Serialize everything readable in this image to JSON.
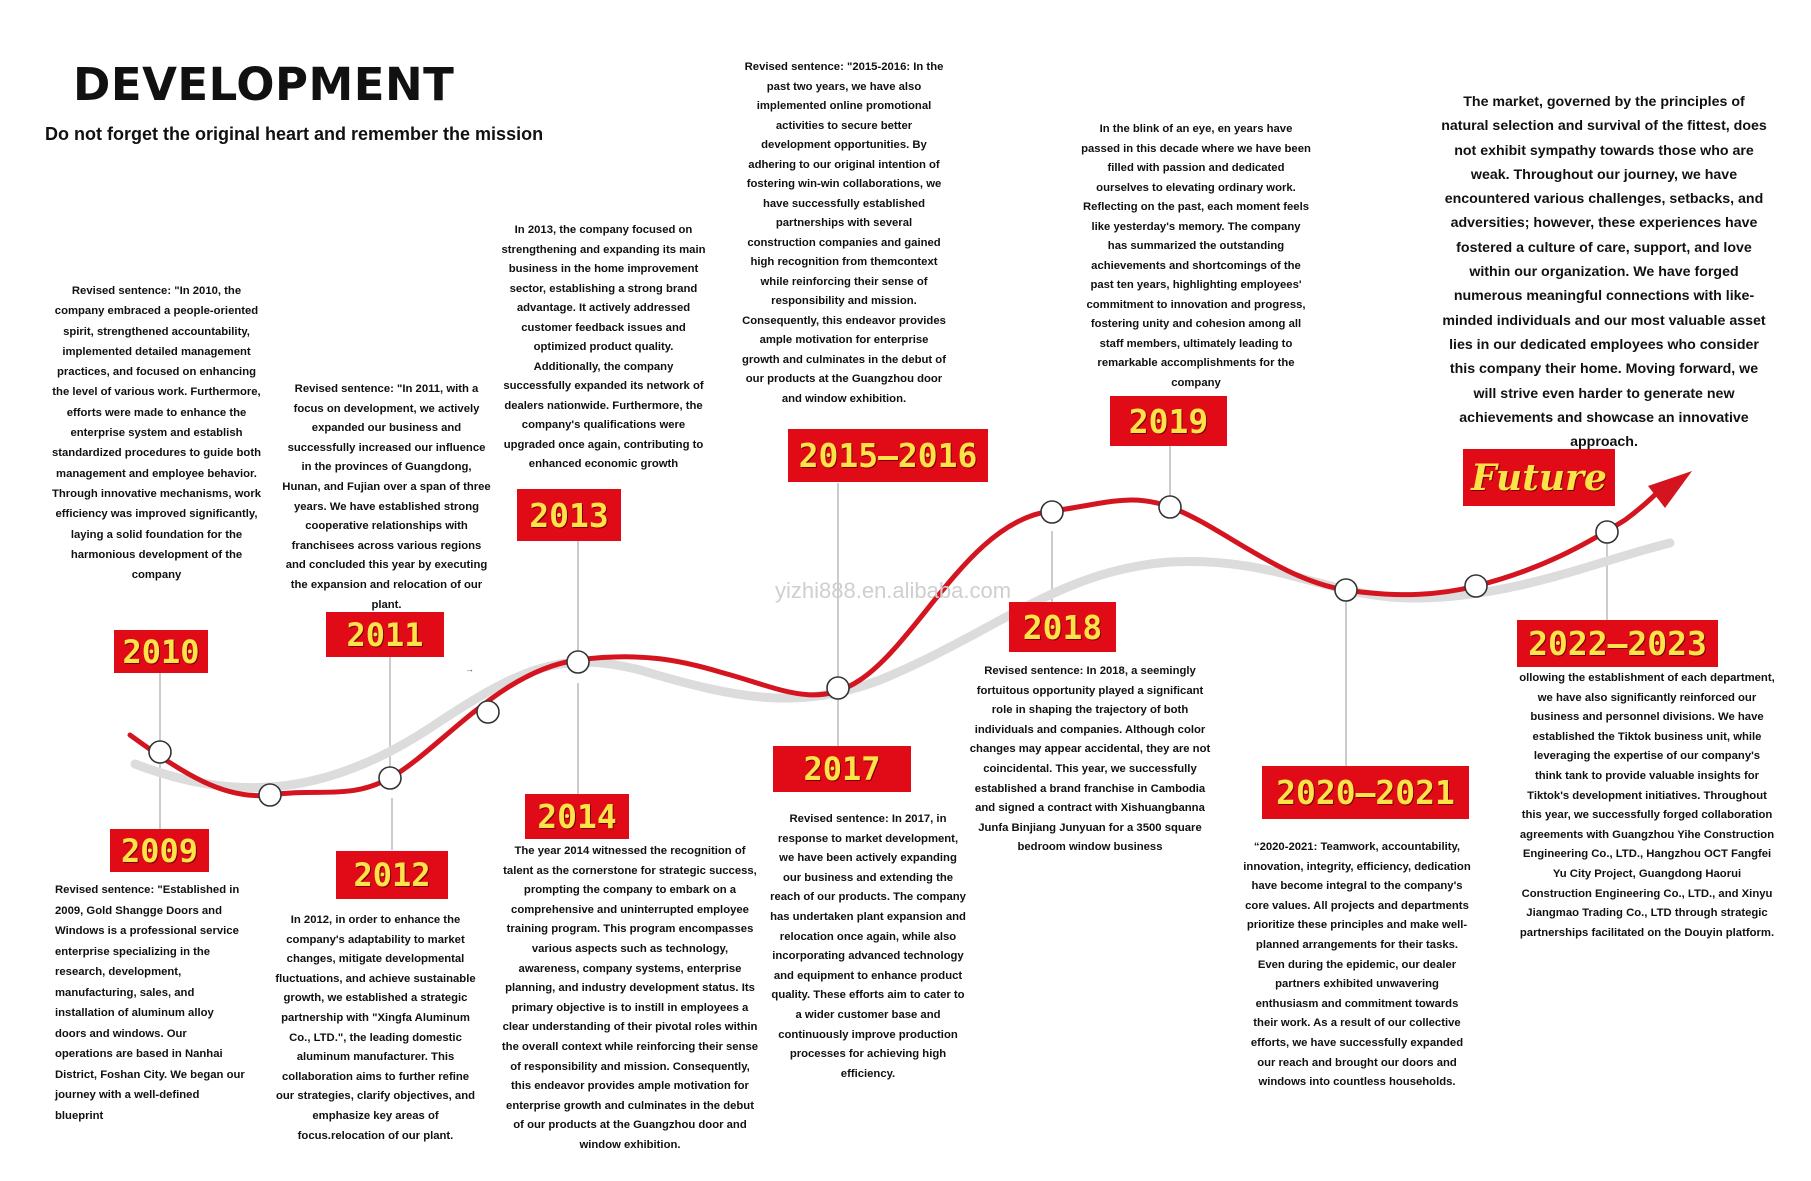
{
  "header": {
    "title": "DEVELOPMENT",
    "subtitle": "Do not forget the original heart and remember the mission"
  },
  "watermark": "yizhi888.en.alibaba.com",
  "market_text": "The market, governed by the principles of natural selection and survival of the fittest, does not exhibit sympathy towards those who are weak. Throughout our journey, we have encountered various challenges, setbacks, and adversities; however, these experiences have fostered a culture of care, support, and love within our organization. We have forged numerous meaningful connections with like-minded individuals and our most valuable asset lies in our dedicated employees who consider this company their home. Moving forward, we will strive even harder to generate new achievements and showcase an innovative approach.",
  "milestones": [
    {
      "label": "2009",
      "text": "Revised sentence: \"Established in 2009, Gold Shangge Doors and Windows is a professional service enterprise specializing in the research, development, manufacturing, sales, and installation of aluminum alloy doors and windows. Our operations are based in Nanhai District, Foshan City. We began our journey with a well-defined blueprint"
    },
    {
      "label": "2010",
      "text": "Revised sentence: \"In 2010, the company embraced a people-oriented spirit, strengthened accountability, implemented detailed management practices, and focused on enhancing the level of various work. Furthermore, efforts were made to enhance the enterprise system and establish standardized procedures to guide both management and employee behavior. Through innovative mechanisms, work efficiency was improved significantly, laying a solid foundation for the harmonious development of the company"
    },
    {
      "label": "2011",
      "text": "Revised sentence: \"In 2011, with a focus on development, we actively expanded our business and successfully increased our influence in the provinces of Guangdong, Hunan, and Fujian over a span of three years. We have established strong cooperative relationships with franchisees across various regions and concluded this year by executing the expansion and relocation of our plant."
    },
    {
      "label": "2012",
      "text": "In 2012, in order to enhance the company's adaptability to market changes, mitigate developmental fluctuations, and achieve sustainable growth, we established a strategic partnership with \"Xingfa Aluminum Co., LTD.\", the leading domestic aluminum manufacturer. This collaboration aims to further refine our strategies, clarify objectives, and emphasize key areas of focus.relocation of our plant."
    },
    {
      "label": "2013",
      "text": "In 2013, the company focused on strengthening and expanding its main business in the home improvement sector, establishing a strong brand advantage. It actively addressed customer feedback issues and optimized product quality. Additionally, the company successfully expanded its network of dealers nationwide. Furthermore, the company's qualifications were upgraded once again, contributing to enhanced economic growth"
    },
    {
      "label": "2014",
      "text": "The year 2014 witnessed the recognition of talent as the cornerstone for strategic success, prompting the company to embark on a comprehensive and uninterrupted employee training program. This program encompasses various aspects such as technology, awareness, company systems, enterprise planning, and industry development status. Its primary objective is to instill in employees a clear understanding of their pivotal roles within the overall context while reinforcing their sense of responsibility and mission. Consequently, this endeavor provides ample motivation for enterprise growth and culminates in the debut of our products at the Guangzhou door and window exhibition."
    },
    {
      "label": "2015—2016",
      "text": "Revised sentence: \"2015-2016: In the past two years, we have also implemented online promotional activities to secure better development opportunities. By adhering to our original intention of fostering win-win collaborations, we have successfully established partnerships with several construction companies and gained high recognition from themcontext while reinforcing their sense of responsibility and mission. Consequently, this endeavor provides ample motivation for enterprise growth and culminates in the debut of our products at the Guangzhou door and window exhibition."
    },
    {
      "label": "2017",
      "text": "Revised sentence: In 2017, in response to market development, we have been actively expanding our business and extending the reach of our products. The company has undertaken plant expansion and relocation once again, while also incorporating advanced technology and equipment to enhance product quality. These efforts aim to cater to a wider customer base and continuously improve production processes for achieving high efficiency."
    },
    {
      "label": "2018",
      "text": "Revised sentence: In 2018, a seemingly fortuitous opportunity played a significant role in shaping the trajectory of both individuals and companies. Although color changes may appear accidental, they are not coincidental. This year, we successfully established a brand franchise in Cambodia and signed a contract with Xishuangbanna Junfa Binjiang Junyuan for a 3500 square bedroom window business"
    },
    {
      "label": "2019",
      "text": "In the blink of an eye, en years have passed in this decade where we have been filled with passion and dedicated ourselves to elevating ordinary work. Reflecting on the past, each moment feels like yesterday's memory. The company has summarized the outstanding achievements and shortcomings of the past ten years, highlighting employees' commitment to innovation and progress, fostering unity and cohesion among all staff members, ultimately leading to remarkable accomplishments for the company"
    },
    {
      "label": "2020—2021",
      "text": "“2020-2021: Teamwork, accountability, innovation, integrity, efficiency, dedication have become integral to the company's core values. All projects and departments prioritize these principles and make well-planned arrangements for their tasks. Even during the epidemic, our dealer partners exhibited unwavering enthusiasm and commitment towards their work. As a result of our collective efforts, we have successfully expanded our reach and brought our doors and windows into countless households."
    },
    {
      "label": "2022—2023",
      "text": "ollowing the establishment of each department, we have also significantly reinforced our business and personnel divisions. We have established the Tiktok business unit, while leveraging the expertise of our company's think tank to provide valuable insights for Tiktok's development initiatives. Throughout this year, we successfully forged collaboration agreements with Guangzhou Yihe Construction Engineering Co., LTD., Hangzhou OCT Fangfei Yu City Project, Guangdong Haorui Construction Engineering Co., LTD., and Xinyu Jiangmao Trading Co., LTD through strategic partnerships facilitated on the Douyin platform."
    },
    {
      "label": "Future",
      "text": ""
    }
  ],
  "colors": {
    "accent": "#d4151f",
    "badge_text": "#fde34a",
    "shadow_curve": "#dcdcdc",
    "connector": "#999999"
  }
}
